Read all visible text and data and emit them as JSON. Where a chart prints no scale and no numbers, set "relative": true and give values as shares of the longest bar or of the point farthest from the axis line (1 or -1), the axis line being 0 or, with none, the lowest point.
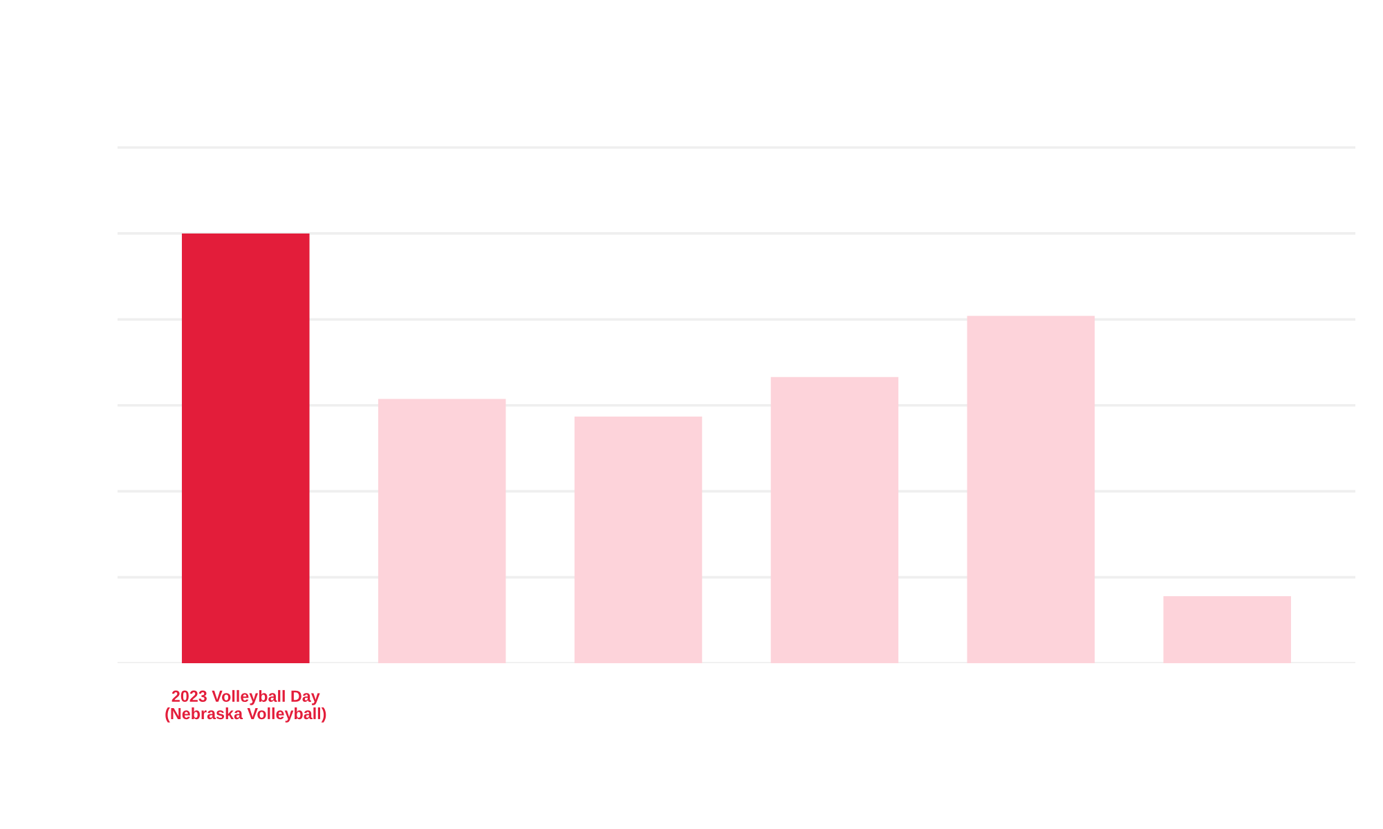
{
  "chart_data": {
    "type": "bar",
    "categories": [
      "2023 Volleyball Day\n(Nebraska Volleyball)",
      null,
      null,
      null,
      null,
      null
    ],
    "values": [
      1,
      0.615,
      0.574,
      0.666,
      0.808,
      0.156
    ],
    "colors": [
      "#e31d3a",
      "#fdd3da",
      "#fdd3da",
      "#fdd3da",
      "#fdd3da",
      "#fdd3da"
    ],
    "relative": true,
    "grid": "y"
  }
}
